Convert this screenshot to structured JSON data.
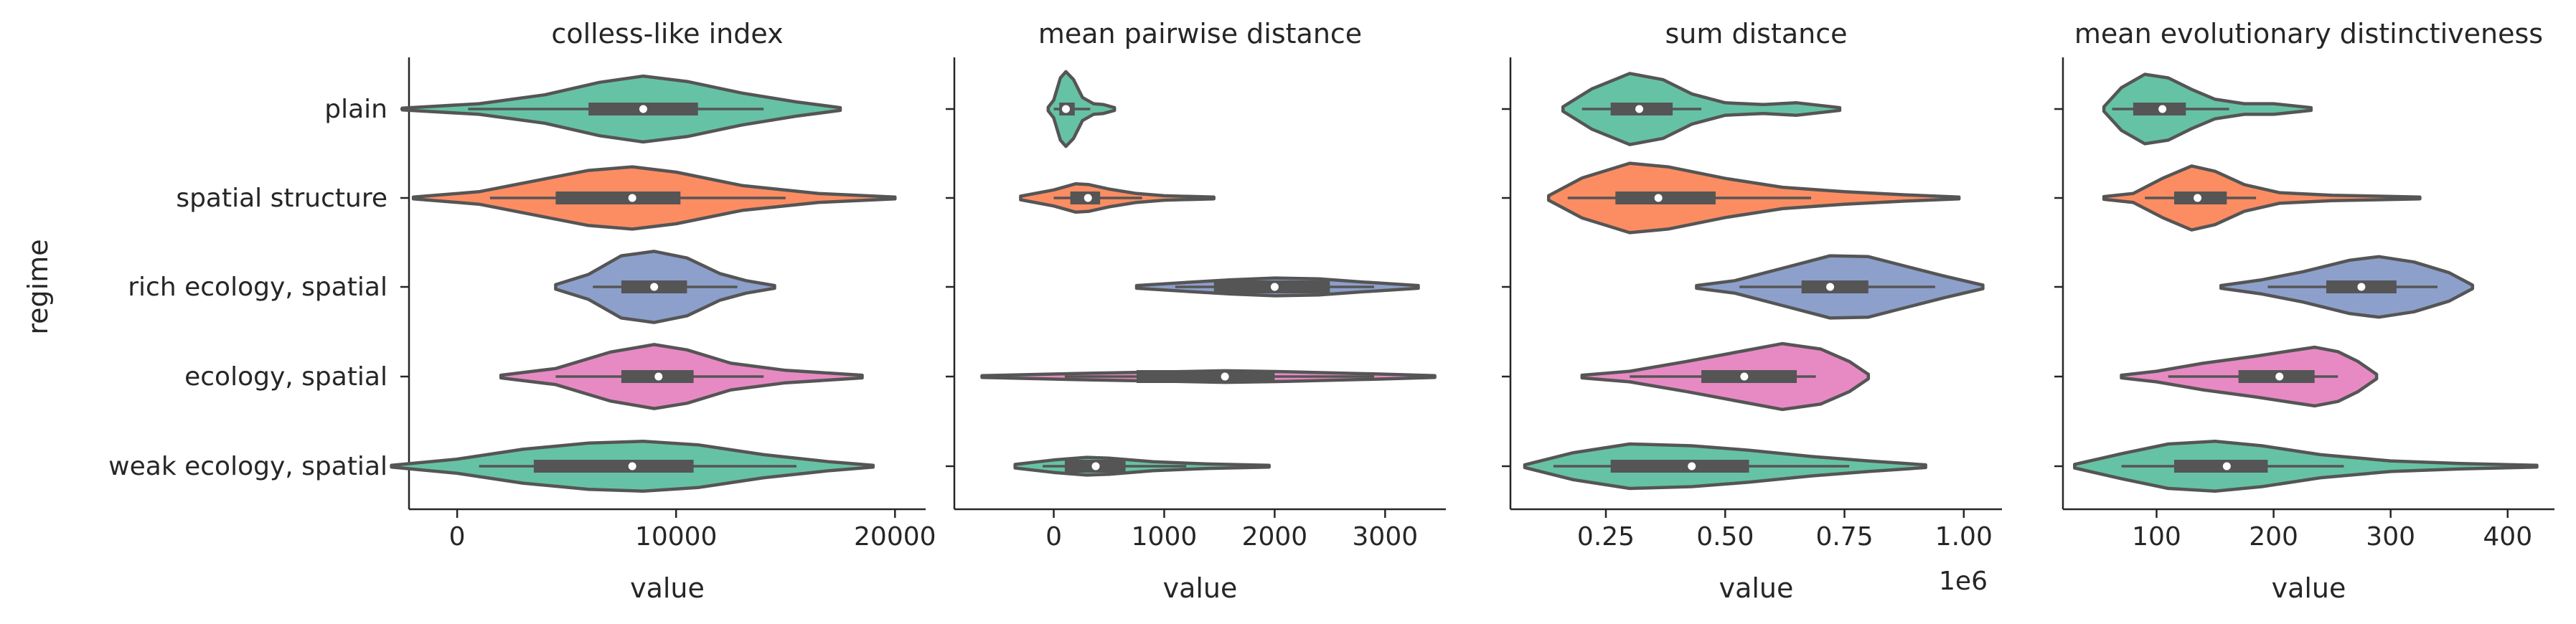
{
  "figure": {
    "ylabel": "regime",
    "categories": [
      "plain",
      "spatial structure",
      "rich ecology, spatial",
      "ecology, spatial",
      "weak ecology, spatial"
    ],
    "palette": [
      "#66c2a5",
      "#fc8d62",
      "#8da0cb",
      "#e78ac3",
      "#66c2a5"
    ],
    "outline_color": "#555555"
  },
  "chart_data": [
    {
      "type": "violin",
      "title": "colless-like index",
      "xlabel": "value",
      "ylabel": "regime",
      "xlim": [
        -2200,
        21400
      ],
      "xticks": [
        0,
        10000,
        20000
      ],
      "xtick_labels": [
        "0",
        "10000",
        "20000"
      ],
      "offset_label": "",
      "series": [
        {
          "category": "plain",
          "min": -2500,
          "q1": 6000,
          "median": 8500,
          "q3": 11000,
          "max": 17500,
          "wmin": 500,
          "wmax": 14000,
          "density": [
            [
              -2500,
              0.02
            ],
            [
              1000,
              0.12
            ],
            [
              4000,
              0.32
            ],
            [
              6500,
              0.6
            ],
            [
              8500,
              0.74
            ],
            [
              10500,
              0.62
            ],
            [
              13000,
              0.36
            ],
            [
              15500,
              0.16
            ],
            [
              17500,
              0.03
            ]
          ]
        },
        {
          "category": "spatial structure",
          "min": -2000,
          "q1": 4500,
          "median": 8000,
          "q3": 10200,
          "max": 20000,
          "wmin": 1500,
          "wmax": 15000,
          "density": [
            [
              -2000,
              0.02
            ],
            [
              1000,
              0.14
            ],
            [
              3500,
              0.38
            ],
            [
              6000,
              0.62
            ],
            [
              8000,
              0.7
            ],
            [
              10000,
              0.58
            ],
            [
              13000,
              0.28
            ],
            [
              16500,
              0.1
            ],
            [
              20000,
              0.02
            ]
          ]
        },
        {
          "category": "rich ecology, spatial",
          "min": 4500,
          "q1": 7500,
          "median": 9000,
          "q3": 10500,
          "max": 14500,
          "wmin": 6200,
          "wmax": 12800,
          "density": [
            [
              4500,
              0.05
            ],
            [
              6000,
              0.28
            ],
            [
              7500,
              0.7
            ],
            [
              9000,
              0.8
            ],
            [
              10500,
              0.65
            ],
            [
              12000,
              0.3
            ],
            [
              13200,
              0.14
            ],
            [
              14500,
              0.03
            ]
          ]
        },
        {
          "category": "ecology, spatial",
          "min": 2000,
          "q1": 7500,
          "median": 9200,
          "q3": 10800,
          "max": 18500,
          "wmin": 4500,
          "wmax": 14000,
          "density": [
            [
              2000,
              0.03
            ],
            [
              4500,
              0.18
            ],
            [
              7000,
              0.55
            ],
            [
              9000,
              0.72
            ],
            [
              10500,
              0.6
            ],
            [
              12500,
              0.3
            ],
            [
              15000,
              0.14
            ],
            [
              18500,
              0.03
            ]
          ]
        },
        {
          "category": "weak ecology, spatial",
          "min": -3000,
          "q1": 3500,
          "median": 8000,
          "q3": 10800,
          "max": 19000,
          "wmin": 1000,
          "wmax": 15500,
          "density": [
            [
              -3000,
              0.02
            ],
            [
              0,
              0.16
            ],
            [
              3000,
              0.38
            ],
            [
              6000,
              0.52
            ],
            [
              8500,
              0.56
            ],
            [
              11000,
              0.48
            ],
            [
              14000,
              0.26
            ],
            [
              17000,
              0.1
            ],
            [
              19000,
              0.02
            ]
          ]
        }
      ]
    },
    {
      "type": "violin",
      "title": "mean pairwise distance",
      "xlabel": "value",
      "ylabel": "",
      "xlim": [
        -900,
        3550
      ],
      "xticks": [
        0,
        1000,
        2000,
        3000
      ],
      "xtick_labels": [
        "0",
        "1000",
        "2000",
        "3000"
      ],
      "offset_label": "",
      "series": [
        {
          "category": "plain",
          "min": -50,
          "q1": 50,
          "median": 110,
          "q3": 190,
          "max": 550,
          "wmin": 0,
          "wmax": 330,
          "density": [
            [
              -50,
              0.04
            ],
            [
              0,
              0.2
            ],
            [
              60,
              0.7
            ],
            [
              110,
              0.84
            ],
            [
              180,
              0.66
            ],
            [
              260,
              0.26
            ],
            [
              360,
              0.12
            ],
            [
              450,
              0.1
            ],
            [
              550,
              0.03
            ]
          ]
        },
        {
          "category": "spatial structure",
          "min": -300,
          "q1": 150,
          "median": 310,
          "q3": 420,
          "max": 1450,
          "wmin": 0,
          "wmax": 800,
          "density": [
            [
              -300,
              0.04
            ],
            [
              0,
              0.18
            ],
            [
              200,
              0.32
            ],
            [
              320,
              0.3
            ],
            [
              500,
              0.2
            ],
            [
              750,
              0.1
            ],
            [
              1000,
              0.05
            ],
            [
              1450,
              0.02
            ]
          ]
        },
        {
          "category": "rich ecology, spatial",
          "min": 750,
          "q1": 1450,
          "median": 2000,
          "q3": 2500,
          "max": 3300,
          "wmin": 1100,
          "wmax": 2900,
          "density": [
            [
              750,
              0.03
            ],
            [
              1200,
              0.1
            ],
            [
              1600,
              0.16
            ],
            [
              2000,
              0.2
            ],
            [
              2400,
              0.18
            ],
            [
              2800,
              0.11
            ],
            [
              3300,
              0.03
            ]
          ]
        },
        {
          "category": "ecology, spatial",
          "min": -650,
          "q1": 750,
          "median": 1550,
          "q3": 2000,
          "max": 3450,
          "wmin": 100,
          "wmax": 2900,
          "density": [
            [
              -650,
              0.02
            ],
            [
              200,
              0.07
            ],
            [
              900,
              0.1
            ],
            [
              1550,
              0.13
            ],
            [
              2100,
              0.11
            ],
            [
              2900,
              0.06
            ],
            [
              3450,
              0.02
            ]
          ]
        },
        {
          "category": "weak ecology, spatial",
          "min": -350,
          "q1": 100,
          "median": 380,
          "q3": 650,
          "max": 1950,
          "wmin": -100,
          "wmax": 1200,
          "density": [
            [
              -350,
              0.04
            ],
            [
              0,
              0.14
            ],
            [
              300,
              0.2
            ],
            [
              500,
              0.18
            ],
            [
              900,
              0.1
            ],
            [
              1400,
              0.05
            ],
            [
              1950,
              0.02
            ]
          ]
        }
      ]
    },
    {
      "type": "violin",
      "title": "sum distance",
      "xlabel": "value",
      "ylabel": "",
      "xlim": [
        0.05,
        1.08
      ],
      "xticks": [
        0.25,
        0.5,
        0.75,
        1.0
      ],
      "xtick_labels": [
        "0.25",
        "0.50",
        "0.75",
        "1.00"
      ],
      "offset_label": "1e6",
      "series": [
        {
          "category": "plain",
          "min": 0.16,
          "q1": 0.26,
          "median": 0.32,
          "q3": 0.39,
          "max": 0.74,
          "wmin": 0.2,
          "wmax": 0.45,
          "density": [
            [
              0.16,
              0.05
            ],
            [
              0.22,
              0.45
            ],
            [
              0.3,
              0.8
            ],
            [
              0.37,
              0.66
            ],
            [
              0.43,
              0.34
            ],
            [
              0.5,
              0.14
            ],
            [
              0.58,
              0.1
            ],
            [
              0.65,
              0.14
            ],
            [
              0.74,
              0.03
            ]
          ]
        },
        {
          "category": "spatial structure",
          "min": 0.13,
          "q1": 0.27,
          "median": 0.36,
          "q3": 0.48,
          "max": 0.99,
          "wmin": 0.17,
          "wmax": 0.68,
          "density": [
            [
              0.13,
              0.05
            ],
            [
              0.2,
              0.45
            ],
            [
              0.3,
              0.78
            ],
            [
              0.38,
              0.7
            ],
            [
              0.5,
              0.44
            ],
            [
              0.62,
              0.24
            ],
            [
              0.75,
              0.14
            ],
            [
              0.88,
              0.07
            ],
            [
              0.99,
              0.02
            ]
          ]
        },
        {
          "category": "rich ecology, spatial",
          "min": 0.44,
          "q1": 0.66,
          "median": 0.72,
          "q3": 0.8,
          "max": 1.04,
          "wmin": 0.53,
          "wmax": 0.94,
          "density": [
            [
              0.44,
              0.03
            ],
            [
              0.52,
              0.14
            ],
            [
              0.62,
              0.42
            ],
            [
              0.72,
              0.7
            ],
            [
              0.8,
              0.68
            ],
            [
              0.88,
              0.46
            ],
            [
              0.96,
              0.24
            ],
            [
              1.04,
              0.04
            ]
          ]
        },
        {
          "category": "ecology, spatial",
          "min": 0.2,
          "q1": 0.45,
          "median": 0.54,
          "q3": 0.65,
          "max": 0.8,
          "wmin": 0.3,
          "wmax": 0.69,
          "density": [
            [
              0.2,
              0.03
            ],
            [
              0.3,
              0.12
            ],
            [
              0.42,
              0.34
            ],
            [
              0.54,
              0.58
            ],
            [
              0.62,
              0.74
            ],
            [
              0.7,
              0.62
            ],
            [
              0.76,
              0.34
            ],
            [
              0.8,
              0.05
            ]
          ]
        },
        {
          "category": "weak ecology, spatial",
          "min": 0.08,
          "q1": 0.26,
          "median": 0.43,
          "q3": 0.55,
          "max": 0.92,
          "wmin": 0.14,
          "wmax": 0.76,
          "density": [
            [
              0.08,
              0.03
            ],
            [
              0.18,
              0.3
            ],
            [
              0.3,
              0.5
            ],
            [
              0.43,
              0.46
            ],
            [
              0.55,
              0.36
            ],
            [
              0.68,
              0.22
            ],
            [
              0.8,
              0.12
            ],
            [
              0.92,
              0.03
            ]
          ]
        }
      ]
    },
    {
      "type": "violin",
      "title": "mean evolutionary distinctiveness",
      "xlabel": "value",
      "ylabel": "",
      "xlim": [
        20,
        440
      ],
      "xticks": [
        100,
        200,
        300,
        400
      ],
      "xtick_labels": [
        "100",
        "200",
        "300",
        "400"
      ],
      "offset_label": "",
      "series": [
        {
          "category": "plain",
          "min": 55,
          "q1": 80,
          "median": 105,
          "q3": 125,
          "max": 232,
          "wmin": 62,
          "wmax": 162,
          "density": [
            [
              55,
              0.05
            ],
            [
              70,
              0.48
            ],
            [
              90,
              0.78
            ],
            [
              110,
              0.7
            ],
            [
              130,
              0.44
            ],
            [
              150,
              0.22
            ],
            [
              175,
              0.12
            ],
            [
              200,
              0.12
            ],
            [
              232,
              0.03
            ]
          ]
        },
        {
          "category": "spatial structure",
          "min": 55,
          "q1": 115,
          "median": 135,
          "q3": 160,
          "max": 325,
          "wmin": 90,
          "wmax": 185,
          "density": [
            [
              55,
              0.03
            ],
            [
              80,
              0.1
            ],
            [
              105,
              0.44
            ],
            [
              130,
              0.72
            ],
            [
              150,
              0.6
            ],
            [
              175,
              0.3
            ],
            [
              205,
              0.12
            ],
            [
              250,
              0.06
            ],
            [
              290,
              0.04
            ],
            [
              325,
              0.02
            ]
          ]
        },
        {
          "category": "rich ecology, spatial",
          "min": 155,
          "q1": 245,
          "median": 275,
          "q3": 305,
          "max": 370,
          "wmin": 195,
          "wmax": 340,
          "density": [
            [
              155,
              0.03
            ],
            [
              190,
              0.16
            ],
            [
              225,
              0.34
            ],
            [
              265,
              0.6
            ],
            [
              290,
              0.68
            ],
            [
              320,
              0.56
            ],
            [
              350,
              0.32
            ],
            [
              370,
              0.04
            ]
          ]
        },
        {
          "category": "ecology, spatial",
          "min": 70,
          "q1": 170,
          "median": 205,
          "q3": 235,
          "max": 288,
          "wmin": 110,
          "wmax": 255,
          "density": [
            [
              70,
              0.03
            ],
            [
              100,
              0.12
            ],
            [
              140,
              0.3
            ],
            [
              185,
              0.46
            ],
            [
              215,
              0.58
            ],
            [
              235,
              0.66
            ],
            [
              255,
              0.56
            ],
            [
              272,
              0.34
            ],
            [
              288,
              0.05
            ]
          ]
        },
        {
          "category": "weak ecology, spatial",
          "min": 30,
          "q1": 115,
          "median": 160,
          "q3": 195,
          "max": 425,
          "wmin": 70,
          "wmax": 260,
          "density": [
            [
              30,
              0.04
            ],
            [
              70,
              0.28
            ],
            [
              110,
              0.5
            ],
            [
              150,
              0.56
            ],
            [
              190,
              0.46
            ],
            [
              240,
              0.26
            ],
            [
              300,
              0.12
            ],
            [
              360,
              0.06
            ],
            [
              425,
              0.02
            ]
          ]
        }
      ]
    }
  ]
}
